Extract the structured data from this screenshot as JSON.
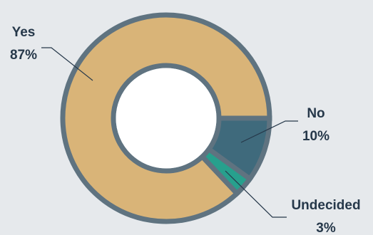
{
  "chart_data": {
    "type": "pie",
    "donut": true,
    "slices": [
      {
        "category": "Yes",
        "value": 87,
        "value_label": "87%",
        "color": "#d9b478"
      },
      {
        "category": "No",
        "value": 10,
        "value_label": "10%",
        "color": "#3f6a7c"
      },
      {
        "category": "Undecided",
        "value": 3,
        "value_label": "3%",
        "color": "#27a08d"
      }
    ],
    "border_color": "#5f7380",
    "background_color": "#e6e9ec"
  }
}
